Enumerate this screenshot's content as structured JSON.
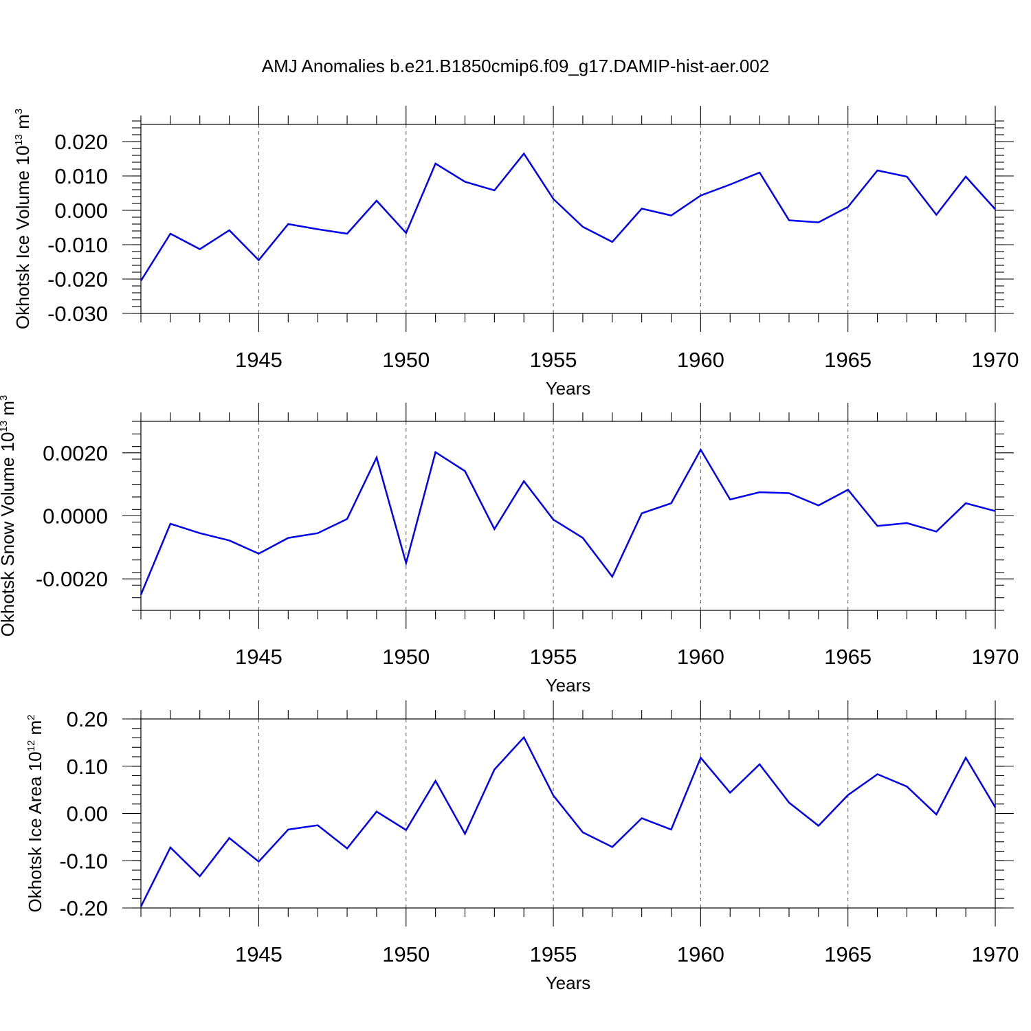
{
  "title": "AMJ Anomalies b.e21.B1850cmip6.f09_g17.DAMIP-hist-aer.002",
  "colors": {
    "series": "#0000f5",
    "grid": "#555555",
    "axes": "#000000"
  },
  "chart_data": [
    {
      "type": "line",
      "ylabel": "Okhotsk Ice Volume 10^13 m^3",
      "ylabel_base": "Okhotsk Ice Volume 10",
      "ylabel_exp": "13",
      "ylabel_unit": "m",
      "ylabel_unit_exp": "3",
      "xlabel": "Years",
      "xlim": [
        1941,
        1971
      ],
      "ylim": [
        -0.03,
        0.025
      ],
      "yticks": [
        -0.03,
        -0.02,
        -0.01,
        0.0,
        0.01,
        0.02
      ],
      "ytick_labels": [
        "-0.030",
        "-0.020",
        "-0.010",
        "0.000",
        "0.010",
        "0.020"
      ],
      "xticks": [
        1945,
        1950,
        1955,
        1960,
        1965,
        1970
      ],
      "xtick_labels": [
        "1945",
        "1950",
        "1955",
        "1960",
        "1965",
        "1970"
      ],
      "grid": "vertical dashed at major x ticks",
      "x": [
        1941,
        1942,
        1943,
        1944,
        1945,
        1946,
        1947,
        1948,
        1949,
        1950,
        1951,
        1952,
        1953,
        1954,
        1955,
        1956,
        1957,
        1958,
        1959,
        1960,
        1961,
        1962,
        1963,
        1964,
        1965,
        1966,
        1967,
        1968,
        1969,
        1970
      ],
      "y": [
        -0.0205,
        -0.0068,
        -0.0113,
        -0.0058,
        -0.0145,
        -0.004,
        -0.0055,
        -0.0068,
        0.0028,
        -0.0066,
        0.0136,
        0.0083,
        0.0058,
        0.0165,
        0.0033,
        -0.0048,
        -0.0092,
        0.0005,
        -0.0015,
        0.0043,
        0.0075,
        0.011,
        -0.0029,
        -0.0035,
        0.001,
        0.0116,
        0.0098,
        -0.0013,
        0.0098,
        0.0003
      ]
    },
    {
      "type": "line",
      "ylabel": "Okhotsk Snow Volume 10^13 m^3",
      "ylabel_base": "Okhotsk Snow Volume 10",
      "ylabel_exp": "13",
      "ylabel_unit": "m",
      "ylabel_unit_exp": "3",
      "xlabel": "Years",
      "xlim": [
        1941,
        1971
      ],
      "ylim": [
        -0.003,
        0.003
      ],
      "yticks": [
        -0.002,
        0.0,
        0.002
      ],
      "ytick_labels": [
        "-0.0020",
        "0.0000",
        "0.0020"
      ],
      "xticks": [
        1945,
        1950,
        1955,
        1960,
        1965,
        1970
      ],
      "xtick_labels": [
        "1945",
        "1950",
        "1955",
        "1960",
        "1965",
        "1970"
      ],
      "grid": "vertical dashed at major x ticks",
      "x": [
        1941,
        1942,
        1943,
        1944,
        1945,
        1946,
        1947,
        1948,
        1949,
        1950,
        1951,
        1952,
        1953,
        1954,
        1955,
        1956,
        1957,
        1958,
        1959,
        1960,
        1961,
        1962,
        1963,
        1964,
        1965,
        1966,
        1967,
        1968,
        1969,
        1970
      ],
      "y": [
        -0.0025,
        -0.00025,
        -0.00055,
        -0.00078,
        -0.0012,
        -0.0007,
        -0.00055,
        -0.0001,
        0.00185,
        -0.0015,
        0.00202,
        0.00142,
        -0.00042,
        0.0011,
        -0.00012,
        -0.0007,
        -0.00193,
        8e-05,
        0.0004,
        0.0021,
        0.00052,
        0.00075,
        0.00072,
        0.00033,
        0.00083,
        -0.00032,
        -0.00023,
        -0.0005,
        0.0004,
        0.00015
      ]
    },
    {
      "type": "line",
      "ylabel": "Okhotsk Ice Area 10^12 m^2",
      "ylabel_base": "Okhotsk Ice Area 10",
      "ylabel_exp": "12",
      "ylabel_unit": "m",
      "ylabel_unit_exp": "2",
      "xlabel": "Years",
      "xlim": [
        1941,
        1971
      ],
      "ylim": [
        -0.2,
        0.2
      ],
      "yticks": [
        -0.2,
        -0.1,
        0.0,
        0.1,
        0.2
      ],
      "ytick_labels": [
        "-0.20",
        "-0.10",
        "0.00",
        "0.10",
        "0.20"
      ],
      "xticks": [
        1945,
        1950,
        1955,
        1960,
        1965,
        1970
      ],
      "xtick_labels": [
        "1945",
        "1950",
        "1955",
        "1960",
        "1965",
        "1970"
      ],
      "grid": "vertical dashed at major x ticks",
      "x": [
        1941,
        1942,
        1943,
        1944,
        1945,
        1946,
        1947,
        1948,
        1949,
        1950,
        1951,
        1952,
        1953,
        1954,
        1955,
        1956,
        1957,
        1958,
        1959,
        1960,
        1961,
        1962,
        1963,
        1964,
        1965,
        1966,
        1967,
        1968,
        1969,
        1970
      ],
      "y": [
        -0.197,
        -0.072,
        -0.133,
        -0.052,
        -0.102,
        -0.034,
        -0.025,
        -0.074,
        0.004,
        -0.035,
        0.069,
        -0.043,
        0.093,
        0.161,
        0.038,
        -0.04,
        -0.071,
        -0.01,
        -0.034,
        0.118,
        0.044,
        0.104,
        0.023,
        -0.026,
        0.039,
        0.083,
        0.057,
        -0.002,
        0.118,
        0.013
      ]
    }
  ]
}
